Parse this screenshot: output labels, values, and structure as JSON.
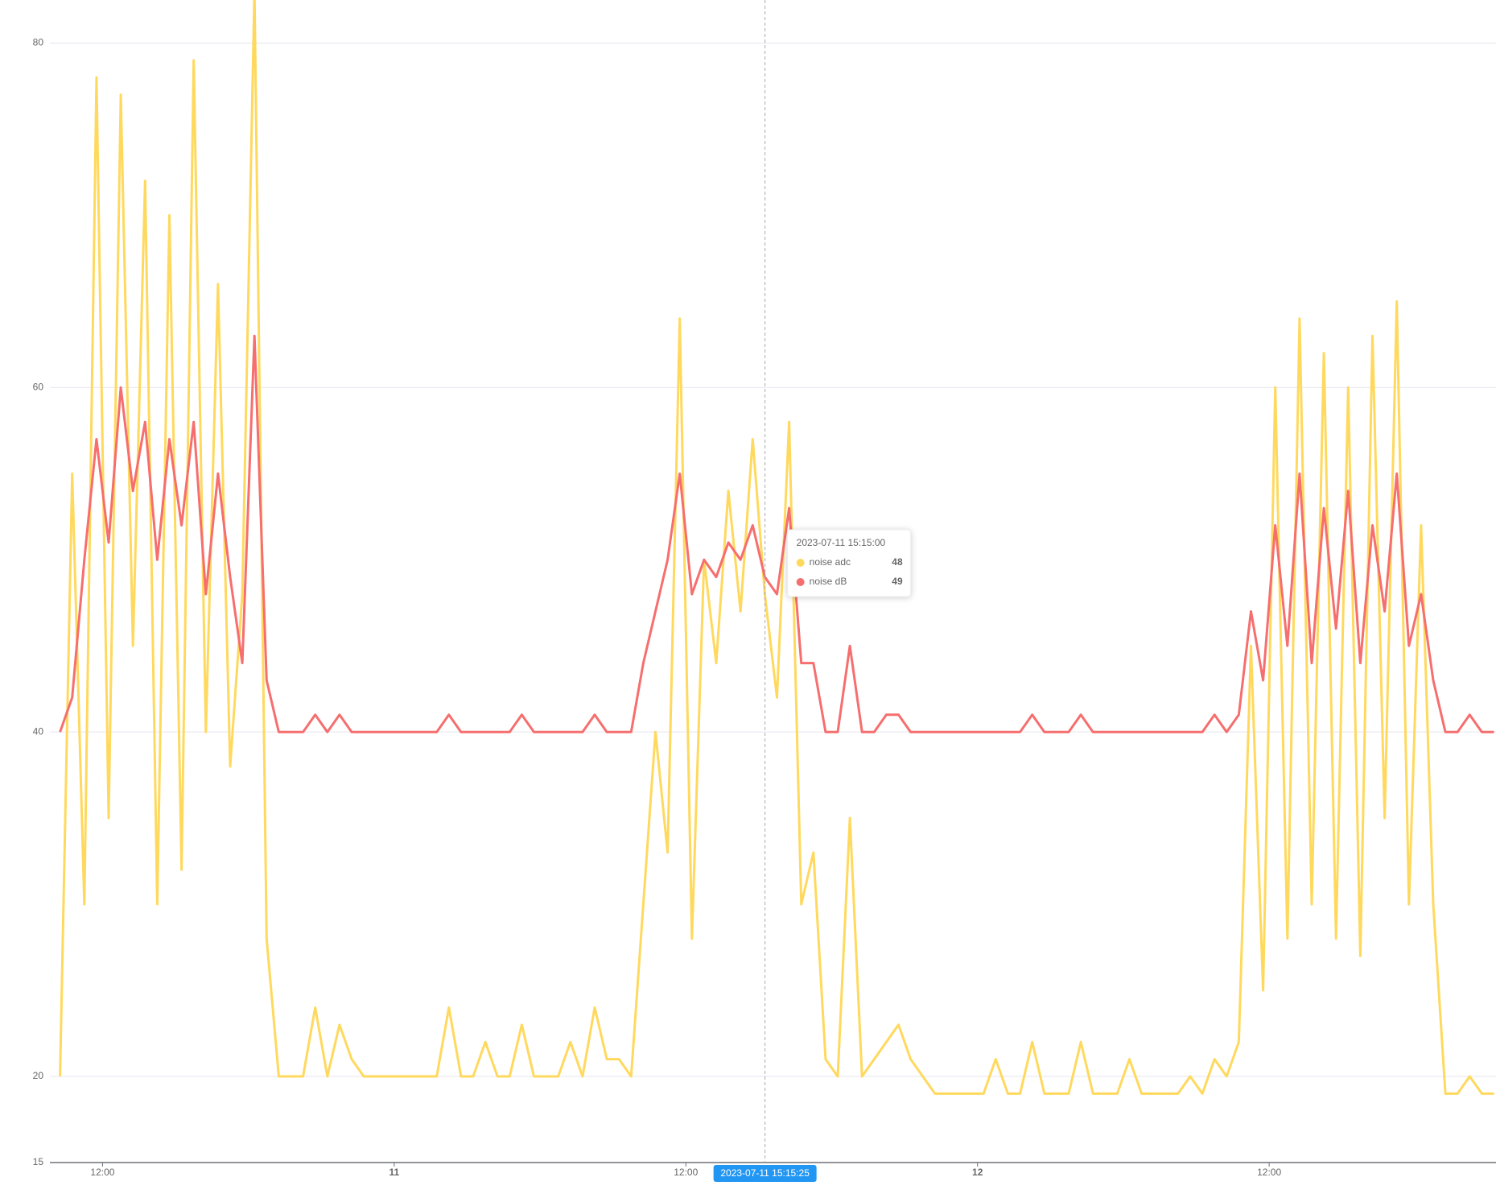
{
  "chart_data": {
    "type": "line",
    "x": [
      "2023-07-10 10:15:00",
      "2023-07-10 10:45:00",
      "2023-07-10 11:15:00",
      "2023-07-10 11:45:00",
      "2023-07-10 12:15:00",
      "2023-07-10 12:45:00",
      "2023-07-10 13:15:00",
      "2023-07-10 13:45:00",
      "2023-07-10 14:15:00",
      "2023-07-10 14:45:00",
      "2023-07-10 15:15:00",
      "2023-07-10 15:45:00",
      "2023-07-10 16:15:00",
      "2023-07-10 16:45:00",
      "2023-07-10 17:15:00",
      "2023-07-10 17:45:00",
      "2023-07-10 18:15:00",
      "2023-07-10 18:45:00",
      "2023-07-10 19:15:00",
      "2023-07-10 19:45:00",
      "2023-07-10 20:15:00",
      "2023-07-10 20:45:00",
      "2023-07-10 21:15:00",
      "2023-07-10 21:45:00",
      "2023-07-10 22:15:00",
      "2023-07-10 22:45:00",
      "2023-07-10 23:15:00",
      "2023-07-10 23:45:00",
      "2023-07-11 00:15:00",
      "2023-07-11 00:45:00",
      "2023-07-11 01:15:00",
      "2023-07-11 01:45:00",
      "2023-07-11 02:15:00",
      "2023-07-11 02:45:00",
      "2023-07-11 03:15:00",
      "2023-07-11 03:45:00",
      "2023-07-11 04:15:00",
      "2023-07-11 04:45:00",
      "2023-07-11 05:15:00",
      "2023-07-11 05:45:00",
      "2023-07-11 06:15:00",
      "2023-07-11 06:45:00",
      "2023-07-11 07:15:00",
      "2023-07-11 07:45:00",
      "2023-07-11 08:15:00",
      "2023-07-11 08:45:00",
      "2023-07-11 09:15:00",
      "2023-07-11 09:45:00",
      "2023-07-11 10:15:00",
      "2023-07-11 10:45:00",
      "2023-07-11 11:15:00",
      "2023-07-11 11:45:00",
      "2023-07-11 12:15:00",
      "2023-07-11 12:45:00",
      "2023-07-11 13:15:00",
      "2023-07-11 13:45:00",
      "2023-07-11 14:15:00",
      "2023-07-11 14:45:00",
      "2023-07-11 15:15:00",
      "2023-07-11 15:45:00",
      "2023-07-11 16:15:00",
      "2023-07-11 16:45:00",
      "2023-07-11 17:15:00",
      "2023-07-11 17:45:00",
      "2023-07-11 18:15:00",
      "2023-07-11 18:45:00",
      "2023-07-11 19:15:00",
      "2023-07-11 19:45:00",
      "2023-07-11 20:15:00",
      "2023-07-11 20:45:00",
      "2023-07-11 21:15:00",
      "2023-07-11 21:45:00",
      "2023-07-11 22:15:00",
      "2023-07-11 22:45:00",
      "2023-07-11 23:15:00",
      "2023-07-11 23:45:00",
      "2023-07-12 00:15:00",
      "2023-07-12 00:45:00",
      "2023-07-12 01:15:00",
      "2023-07-12 01:45:00",
      "2023-07-12 02:15:00",
      "2023-07-12 02:45:00",
      "2023-07-12 03:15:00",
      "2023-07-12 03:45:00",
      "2023-07-12 04:15:00",
      "2023-07-12 04:45:00",
      "2023-07-12 05:15:00",
      "2023-07-12 05:45:00",
      "2023-07-12 06:15:00",
      "2023-07-12 06:45:00",
      "2023-07-12 07:15:00",
      "2023-07-12 07:45:00",
      "2023-07-12 08:15:00",
      "2023-07-12 08:45:00",
      "2023-07-12 09:15:00",
      "2023-07-12 09:45:00",
      "2023-07-12 10:15:00",
      "2023-07-12 10:45:00",
      "2023-07-12 11:15:00",
      "2023-07-12 11:45:00",
      "2023-07-12 12:15:00",
      "2023-07-12 12:45:00",
      "2023-07-12 13:15:00",
      "2023-07-12 13:45:00",
      "2023-07-12 14:15:00",
      "2023-07-12 14:45:00",
      "2023-07-12 15:15:00",
      "2023-07-12 15:45:00",
      "2023-07-12 16:15:00",
      "2023-07-12 16:45:00",
      "2023-07-12 17:15:00",
      "2023-07-12 17:45:00",
      "2023-07-12 18:15:00",
      "2023-07-12 18:45:00",
      "2023-07-12 19:15:00",
      "2023-07-12 19:45:00",
      "2023-07-12 20:15:00",
      "2023-07-12 20:45:00",
      "2023-07-12 21:15:00"
    ],
    "series": [
      {
        "name": "noise adc",
        "color": "#ffd95e",
        "values": [
          20,
          55,
          30,
          78,
          35,
          77,
          45,
          72,
          30,
          70,
          32,
          79,
          40,
          66,
          38,
          48,
          83,
          28,
          20,
          20,
          20,
          24,
          20,
          23,
          21,
          20,
          20,
          20,
          20,
          20,
          20,
          20,
          24,
          20,
          20,
          22,
          20,
          20,
          23,
          20,
          20,
          20,
          22,
          20,
          24,
          21,
          21,
          20,
          30,
          40,
          33,
          64,
          28,
          50,
          44,
          54,
          47,
          57,
          48,
          42,
          58,
          30,
          33,
          21,
          20,
          35,
          20,
          21,
          22,
          23,
          21,
          20,
          19,
          19,
          19,
          19,
          19,
          21,
          19,
          19,
          22,
          19,
          19,
          19,
          22,
          19,
          19,
          19,
          21,
          19,
          19,
          19,
          19,
          20,
          19,
          21,
          20,
          22,
          45,
          25,
          60,
          28,
          64,
          30,
          62,
          28,
          60,
          27,
          63,
          35,
          65,
          30,
          52,
          30,
          19,
          19,
          20,
          19,
          19
        ]
      },
      {
        "name": "noise dB",
        "color": "#f66e6e",
        "values": [
          40,
          42,
          50,
          57,
          51,
          60,
          54,
          58,
          50,
          57,
          52,
          58,
          48,
          55,
          49,
          44,
          63,
          43,
          40,
          40,
          40,
          41,
          40,
          41,
          40,
          40,
          40,
          40,
          40,
          40,
          40,
          40,
          41,
          40,
          40,
          40,
          40,
          40,
          41,
          40,
          40,
          40,
          40,
          40,
          41,
          40,
          40,
          40,
          44,
          47,
          50,
          55,
          48,
          50,
          49,
          51,
          50,
          52,
          49,
          48,
          53,
          44,
          44,
          40,
          40,
          45,
          40,
          40,
          41,
          41,
          40,
          40,
          40,
          40,
          40,
          40,
          40,
          40,
          40,
          40,
          41,
          40,
          40,
          40,
          41,
          40,
          40,
          40,
          40,
          40,
          40,
          40,
          40,
          40,
          40,
          41,
          40,
          41,
          47,
          43,
          52,
          45,
          55,
          44,
          53,
          46,
          54,
          44,
          52,
          47,
          55,
          45,
          48,
          43,
          40,
          40,
          41,
          40,
          40
        ]
      }
    ],
    "xlim": [
      "2023-07-10 09:50:00",
      "2023-07-12 21:20:00"
    ],
    "xticks": [
      {
        "value": "2023-07-10 12:00:00",
        "label": "12:00"
      },
      {
        "value": "2023-07-11 00:00:00",
        "label": "11"
      },
      {
        "value": "2023-07-11 12:00:00",
        "label": "12:00"
      },
      {
        "value": "2023-07-12 00:00:00",
        "label": "12"
      },
      {
        "value": "2023-07-12 12:00:00",
        "label": "12:00"
      }
    ],
    "ylim": [
      15,
      82.5
    ],
    "yticks": [
      15,
      20,
      40,
      60,
      80
    ],
    "grid": true,
    "tooltip_index": 58,
    "crosshair": {
      "value": "2023-07-11 15:15:25",
      "label": "2023-07-11 15:15:25"
    }
  }
}
